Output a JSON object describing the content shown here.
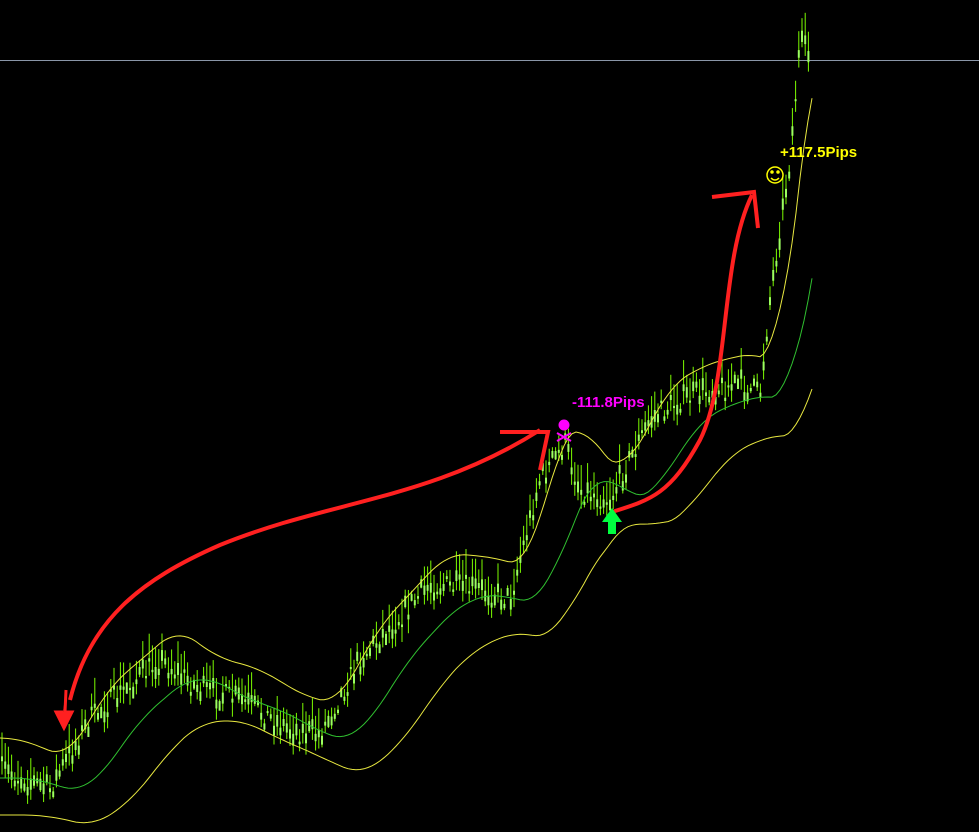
{
  "annotations": [
    {
      "label": "-111.8Pips",
      "color": "#ff00ff"
    },
    {
      "label": "+117.5Pips",
      "color": "#ffff00"
    }
  ]
}
